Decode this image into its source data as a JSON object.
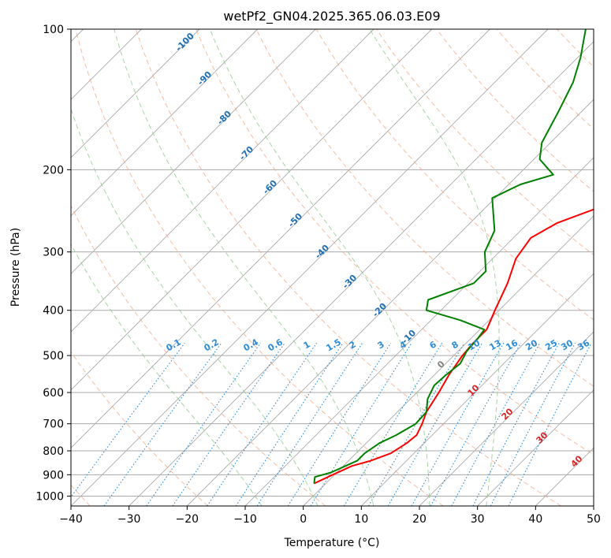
{
  "chart_data": {
    "type": "line",
    "title": "wetPf2_GN04.2025.365.06.03.E09",
    "xlabel": "Temperature (°C)",
    "ylabel": "Pressure (hPa)",
    "xlim": [
      -40,
      50
    ],
    "ylim": [
      1050,
      100
    ],
    "y_scale": "log",
    "grid": true,
    "x_ticks": [
      -40,
      -30,
      -20,
      -10,
      0,
      10,
      20,
      30,
      40,
      50
    ],
    "y_ticks": [
      100,
      200,
      300,
      400,
      500,
      600,
      700,
      800,
      900,
      1000
    ],
    "series": [
      {
        "color": "#ff0000",
        "points": [
          [
            -2.0,
            940
          ],
          [
            -0.3,
            900
          ],
          [
            1.5,
            862
          ],
          [
            3.8,
            840
          ],
          [
            6.0,
            810
          ],
          [
            7.0,
            770
          ],
          [
            7.3,
            740
          ],
          [
            6.3,
            700
          ],
          [
            5.0,
            660
          ],
          [
            3.8,
            600
          ],
          [
            2.5,
            550
          ],
          [
            1.5,
            500
          ],
          [
            1.2,
            470
          ],
          [
            1.2,
            440
          ],
          [
            -0.7,
            400
          ],
          [
            -3.2,
            350
          ],
          [
            -6.0,
            310
          ],
          [
            -7.0,
            280
          ],
          [
            -5.0,
            260
          ],
          [
            -1.5,
            245
          ],
          [
            3.0,
            225
          ],
          [
            8.0,
            210
          ],
          [
            11.5,
            190
          ],
          [
            13.5,
            170
          ],
          [
            15.0,
            150
          ],
          [
            19.0,
            130
          ],
          [
            22.0,
            115
          ],
          [
            25.0,
            100
          ]
        ]
      },
      {
        "color": "#008000",
        "points": [
          [
            -2.0,
            940
          ],
          [
            -3.0,
            910
          ],
          [
            -1.0,
            890
          ],
          [
            0.5,
            860
          ],
          [
            1.5,
            840
          ],
          [
            1.5,
            810
          ],
          [
            2.3,
            770
          ],
          [
            3.8,
            740
          ],
          [
            5.2,
            700
          ],
          [
            5.0,
            660
          ],
          [
            3.0,
            620
          ],
          [
            1.8,
            580
          ],
          [
            2.0,
            550
          ],
          [
            2.5,
            520
          ],
          [
            1.5,
            490
          ],
          [
            1.2,
            460
          ],
          [
            0.8,
            440
          ],
          [
            -5.0,
            420
          ],
          [
            -12.5,
            400
          ],
          [
            -14.0,
            380
          ],
          [
            -9.0,
            350
          ],
          [
            -9.0,
            330
          ],
          [
            -12.5,
            300
          ],
          [
            -14.5,
            270
          ],
          [
            -20.5,
            230
          ],
          [
            -18.0,
            215
          ],
          [
            -14.0,
            205
          ],
          [
            -19.0,
            190
          ],
          [
            -21.5,
            175
          ],
          [
            -24.0,
            150
          ],
          [
            -26.5,
            130
          ],
          [
            -29.5,
            115
          ],
          [
            -33.5,
            100
          ]
        ]
      }
    ],
    "dry_adiabats_C": [
      -40,
      -20,
      0,
      20,
      40,
      60,
      80,
      100,
      120,
      140,
      160,
      180,
      200
    ],
    "moist_adiabats_C": [
      -10,
      0,
      10,
      20,
      30
    ],
    "isotherm_labels": [
      "-100",
      "-90",
      "-80",
      "-70",
      "-60",
      "-50",
      "-40",
      "-30",
      "-20",
      "-10"
    ],
    "mixing_ratio_labels": [
      "0.1",
      "0.2",
      "0.4",
      "0.6",
      "1",
      "1.5",
      "2",
      "3",
      "4",
      "6",
      "8",
      "10",
      "13",
      "16",
      "20",
      "25",
      "30",
      "36"
    ],
    "mixing_ratio_values": [
      0.1,
      0.2,
      0.4,
      0.6,
      1,
      1.5,
      2,
      3,
      4,
      6,
      8,
      10,
      13,
      16,
      20,
      25,
      30,
      36
    ],
    "red_labels": [
      "0",
      "10",
      "20",
      "30",
      "40"
    ],
    "colors": {
      "isotherm": "#aaaaaa",
      "dry_adiabat": "#f4a582",
      "moist_adiabat": "#8fc98f",
      "mixing_ratio": "#2b8cd9",
      "isotherm_label": "#1f6fb4",
      "red_label": "#d62728",
      "zero_label": "#808080"
    }
  }
}
